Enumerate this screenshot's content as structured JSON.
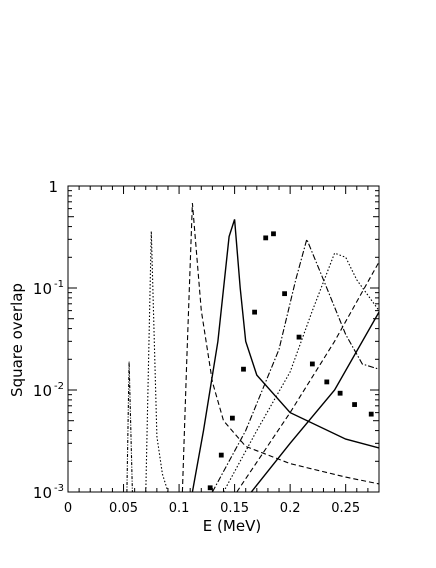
{
  "chart_data": {
    "type": "line",
    "title": "",
    "xlabel": "E (MeV)",
    "ylabel": "Square overlap",
    "xlim": [
      0,
      0.28
    ],
    "ylim": [
      0.001,
      1
    ],
    "yscale": "log",
    "grid": false,
    "x_ticks": [
      {
        "value": 0,
        "label": "0"
      },
      {
        "value": 0.05,
        "label": "0.05"
      },
      {
        "value": 0.1,
        "label": "0.1"
      },
      {
        "value": 0.15,
        "label": "0.15"
      },
      {
        "value": 0.2,
        "label": "0.2"
      },
      {
        "value": 0.25,
        "label": "0.25"
      }
    ],
    "y_ticks": [
      {
        "value": 1,
        "base": "1",
        "exp": ""
      },
      {
        "value": 0.1,
        "base": "10",
        "exp": "-1"
      },
      {
        "value": 0.01,
        "base": "10",
        "exp": "-2"
      },
      {
        "value": 0.001,
        "base": "10",
        "exp": "-3"
      }
    ],
    "series": [
      {
        "style": "dashdot-dense",
        "x": [
          0.053,
          0.055,
          0.058
        ],
        "y": [
          0.001,
          0.019,
          0.001
        ]
      },
      {
        "style": "dotted",
        "x": [
          0.07,
          0.075,
          0.08,
          0.085,
          0.09
        ],
        "y": [
          0.001,
          0.36,
          0.0035,
          0.0015,
          0.001
        ]
      },
      {
        "style": "dashed",
        "x": [
          0.103,
          0.107,
          0.112,
          0.12,
          0.13,
          0.14,
          0.16,
          0.2,
          0.25,
          0.28
        ],
        "y": [
          0.001,
          0.02,
          0.68,
          0.06,
          0.012,
          0.005,
          0.0028,
          0.0019,
          0.0014,
          0.0012
        ]
      },
      {
        "style": "solid",
        "x": [
          0.112,
          0.122,
          0.135,
          0.145,
          0.15,
          0.155,
          0.16,
          0.17,
          0.2,
          0.25,
          0.28
        ],
        "y": [
          0.001,
          0.004,
          0.03,
          0.32,
          0.47,
          0.1,
          0.03,
          0.014,
          0.006,
          0.0033,
          0.0027
        ]
      },
      {
        "style": "dashdot",
        "x": [
          0.13,
          0.16,
          0.19,
          0.205,
          0.215,
          0.23,
          0.25,
          0.265,
          0.28
        ],
        "y": [
          0.001,
          0.004,
          0.025,
          0.12,
          0.3,
          0.12,
          0.035,
          0.018,
          0.016
        ]
      },
      {
        "style": "dotted",
        "x": [
          0.14,
          0.17,
          0.2,
          0.22,
          0.24,
          0.25,
          0.26,
          0.28
        ],
        "y": [
          0.001,
          0.004,
          0.015,
          0.06,
          0.22,
          0.2,
          0.12,
          0.06
        ]
      },
      {
        "style": "dashed",
        "x": [
          0.152,
          0.2,
          0.24,
          0.28
        ],
        "y": [
          0.001,
          0.006,
          0.03,
          0.18
        ]
      },
      {
        "style": "solid",
        "x": [
          0.165,
          0.2,
          0.24,
          0.28
        ],
        "y": [
          0.001,
          0.003,
          0.01,
          0.058
        ]
      },
      {
        "style": "markers",
        "x": [
          0.128,
          0.138,
          0.148,
          0.158,
          0.168,
          0.178,
          0.185,
          0.195,
          0.208,
          0.22,
          0.233,
          0.245,
          0.258,
          0.273
        ],
        "y": [
          0.0011,
          0.0023,
          0.0053,
          0.016,
          0.058,
          0.31,
          0.34,
          0.088,
          0.033,
          0.018,
          0.012,
          0.0093,
          0.0072,
          0.0058
        ]
      }
    ]
  }
}
